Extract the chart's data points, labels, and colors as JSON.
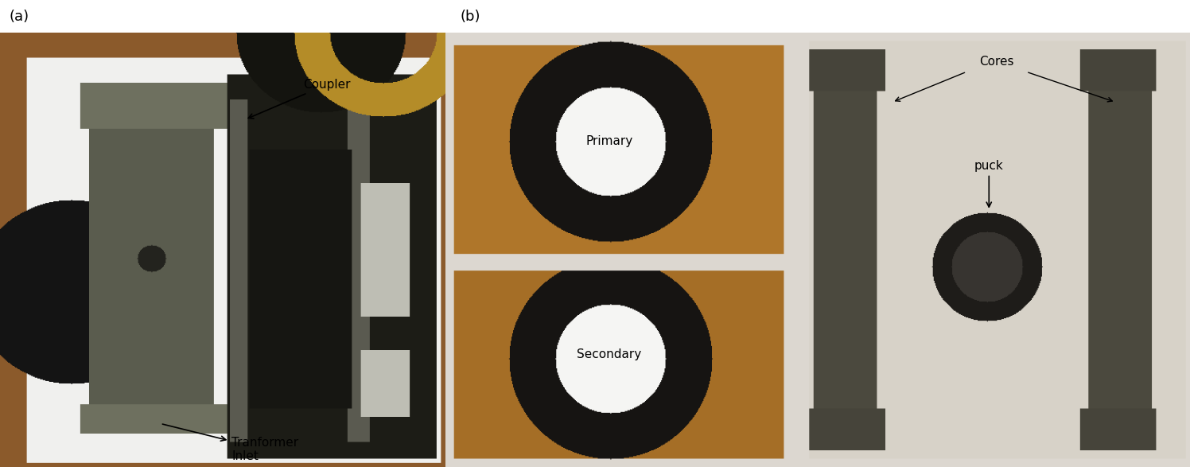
{
  "fig_width": 14.96,
  "fig_height": 5.87,
  "dpi": 100,
  "bg_color": "#ffffff",
  "panel_a_label": "(a)",
  "panel_b_label": "(b)",
  "font_size": 11,
  "label_font_size": 13,
  "coupler_text": "Coupler",
  "inlet_text": "Tranformer\nInlet",
  "cores_text": "Cores",
  "primary_text": "Primary",
  "secondary_text": "Secondary",
  "puck_text": "puck",
  "wood_color": [
    139,
    90,
    43
  ],
  "white_paper": [
    240,
    240,
    238
  ],
  "black": [
    20,
    20,
    20
  ],
  "dark_gray": [
    50,
    50,
    45
  ],
  "mid_gray": [
    100,
    100,
    90
  ],
  "light_gray": [
    160,
    160,
    150
  ],
  "coupler_black": [
    28,
    28,
    25
  ],
  "pcb_tan": [
    185,
    130,
    50
  ],
  "pcb_bg": [
    210,
    195,
    155
  ],
  "core_gray": [
    80,
    78,
    68
  ],
  "white_bg_b": [
    220,
    215,
    205
  ]
}
